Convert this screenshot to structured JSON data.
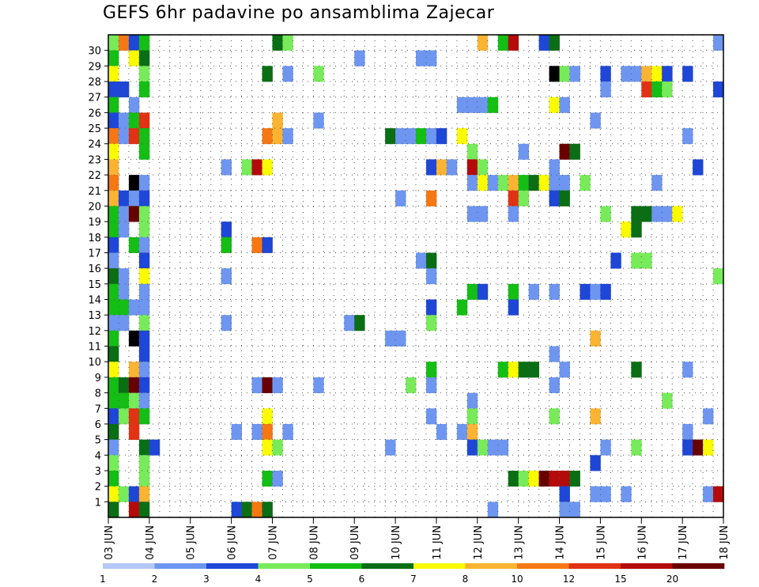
{
  "chart_data": {
    "type": "heatmap",
    "title": "GEFS 6hr padavine po ansamblima Zajecar",
    "x_ticks": [
      "03 JUN",
      "04 JUN",
      "05 JUN",
      "06 JUN",
      "07 JUN",
      "08 JUN",
      "09 JUN",
      "10 JUN",
      "11 JUN",
      "12 JUN",
      "13 JUN",
      "14 JUN",
      "15 JUN",
      "16 JUN",
      "17 JUN",
      "18 JUN"
    ],
    "y_ticks": [
      1,
      2,
      3,
      4,
      5,
      6,
      7,
      8,
      9,
      10,
      11,
      12,
      13,
      14,
      15,
      16,
      17,
      18,
      19,
      20,
      21,
      22,
      23,
      24,
      25,
      26,
      27,
      28,
      29,
      30
    ],
    "grid": "dotted",
    "legend_placement": "bottom",
    "colorbar": {
      "colors": [
        "#b4c8f5",
        "#6e96f0",
        "#1e46d7",
        "#78eb5a",
        "#14be14",
        "#0a6e14",
        "#fafa00",
        "#fab432",
        "#f57814",
        "#e13214",
        "#b40a0a",
        "#690000"
      ],
      "labels": [
        "1",
        "2",
        "3",
        "4",
        "5",
        "6",
        "7",
        "8",
        "10",
        "12",
        "15",
        "20"
      ]
    },
    "cells": [
      [
        30,
        0,
        3
      ],
      [
        30,
        1,
        8
      ],
      [
        30,
        2,
        2
      ],
      [
        30,
        3,
        4
      ],
      [
        30,
        16,
        5
      ],
      [
        30,
        17,
        3
      ],
      [
        30,
        36,
        7
      ],
      [
        30,
        38,
        4
      ],
      [
        30,
        39,
        10
      ],
      [
        30,
        42,
        2
      ],
      [
        30,
        43,
        5
      ],
      [
        30,
        59,
        1
      ],
      [
        29,
        0,
        4
      ],
      [
        29,
        2,
        6
      ],
      [
        29,
        3,
        5
      ],
      [
        29,
        24,
        1
      ],
      [
        29,
        30,
        1
      ],
      [
        29,
        31,
        1
      ],
      [
        28,
        0,
        6
      ],
      [
        28,
        3,
        3
      ],
      [
        28,
        15,
        5
      ],
      [
        28,
        17,
        1
      ],
      [
        28,
        20,
        3
      ],
      [
        28,
        43,
        12
      ],
      [
        28,
        44,
        3
      ],
      [
        28,
        45,
        1
      ],
      [
        28,
        48,
        2
      ],
      [
        28,
        50,
        1
      ],
      [
        28,
        51,
        1
      ],
      [
        28,
        52,
        7
      ],
      [
        28,
        53,
        6
      ],
      [
        28,
        54,
        2
      ],
      [
        28,
        56,
        2
      ],
      [
        27,
        0,
        2
      ],
      [
        27,
        1,
        2
      ],
      [
        27,
        3,
        4
      ],
      [
        27,
        48,
        1
      ],
      [
        27,
        52,
        9
      ],
      [
        27,
        53,
        4
      ],
      [
        27,
        54,
        3
      ],
      [
        27,
        59,
        2
      ],
      [
        26,
        0,
        4
      ],
      [
        26,
        2,
        1
      ],
      [
        26,
        34,
        1
      ],
      [
        26,
        35,
        1
      ],
      [
        26,
        36,
        1
      ],
      [
        26,
        37,
        4
      ],
      [
        26,
        43,
        6
      ],
      [
        26,
        44,
        1
      ],
      [
        25,
        0,
        2
      ],
      [
        25,
        1,
        1
      ],
      [
        25,
        2,
        4
      ],
      [
        25,
        3,
        9
      ],
      [
        25,
        16,
        7
      ],
      [
        25,
        20,
        1
      ],
      [
        25,
        47,
        1
      ],
      [
        24,
        0,
        8
      ],
      [
        24,
        1,
        1
      ],
      [
        24,
        2,
        9
      ],
      [
        24,
        3,
        4
      ],
      [
        24,
        15,
        8
      ],
      [
        24,
        16,
        7
      ],
      [
        24,
        17,
        1
      ],
      [
        24,
        27,
        5
      ],
      [
        24,
        28,
        1
      ],
      [
        24,
        29,
        1
      ],
      [
        24,
        30,
        4
      ],
      [
        24,
        31,
        1
      ],
      [
        24,
        32,
        2
      ],
      [
        24,
        34,
        6
      ],
      [
        24,
        56,
        1
      ],
      [
        23,
        0,
        6
      ],
      [
        23,
        3,
        4
      ],
      [
        23,
        35,
        3
      ],
      [
        23,
        40,
        1
      ],
      [
        23,
        44,
        11
      ],
      [
        23,
        45,
        5
      ],
      [
        22,
        0,
        7
      ],
      [
        22,
        11,
        1
      ],
      [
        22,
        13,
        3
      ],
      [
        22,
        14,
        10
      ],
      [
        22,
        15,
        6
      ],
      [
        22,
        31,
        2
      ],
      [
        22,
        32,
        7
      ],
      [
        22,
        33,
        1
      ],
      [
        22,
        35,
        10
      ],
      [
        22,
        36,
        3
      ],
      [
        22,
        43,
        1
      ],
      [
        22,
        57,
        2
      ],
      [
        21,
        0,
        8
      ],
      [
        21,
        2,
        12
      ],
      [
        21,
        3,
        1
      ],
      [
        21,
        35,
        1
      ],
      [
        21,
        36,
        6
      ],
      [
        21,
        37,
        1
      ],
      [
        21,
        38,
        3
      ],
      [
        21,
        39,
        7
      ],
      [
        21,
        40,
        4
      ],
      [
        21,
        41,
        5
      ],
      [
        21,
        42,
        6
      ],
      [
        21,
        43,
        1
      ],
      [
        21,
        44,
        1
      ],
      [
        21,
        46,
        3
      ],
      [
        21,
        53,
        1
      ],
      [
        20,
        0,
        7
      ],
      [
        20,
        1,
        2
      ],
      [
        20,
        2,
        1
      ],
      [
        20,
        3,
        2
      ],
      [
        20,
        28,
        1
      ],
      [
        20,
        31,
        8
      ],
      [
        20,
        39,
        9
      ],
      [
        20,
        40,
        3
      ],
      [
        20,
        43,
        2
      ],
      [
        20,
        44,
        5
      ],
      [
        19,
        0,
        4
      ],
      [
        19,
        1,
        1
      ],
      [
        19,
        2,
        11
      ],
      [
        19,
        3,
        3
      ],
      [
        19,
        35,
        1
      ],
      [
        19,
        36,
        1
      ],
      [
        19,
        39,
        1
      ],
      [
        19,
        48,
        3
      ],
      [
        19,
        51,
        5
      ],
      [
        19,
        52,
        5
      ],
      [
        19,
        53,
        1
      ],
      [
        19,
        54,
        1
      ],
      [
        19,
        55,
        6
      ],
      [
        18,
        0,
        4
      ],
      [
        18,
        1,
        1
      ],
      [
        18,
        3,
        3
      ],
      [
        18,
        11,
        2
      ],
      [
        18,
        50,
        6
      ],
      [
        18,
        51,
        5
      ],
      [
        17,
        0,
        2
      ],
      [
        17,
        2,
        4
      ],
      [
        17,
        3,
        1
      ],
      [
        17,
        11,
        4
      ],
      [
        17,
        14,
        8
      ],
      [
        17,
        15,
        2
      ],
      [
        16,
        0,
        1
      ],
      [
        16,
        3,
        2
      ],
      [
        16,
        30,
        1
      ],
      [
        16,
        31,
        5
      ],
      [
        16,
        49,
        2
      ],
      [
        16,
        51,
        3
      ],
      [
        16,
        52,
        3
      ],
      [
        15,
        0,
        5
      ],
      [
        15,
        1,
        1
      ],
      [
        15,
        3,
        6
      ],
      [
        15,
        11,
        1
      ],
      [
        15,
        31,
        1
      ],
      [
        15,
        59,
        3
      ],
      [
        14,
        0,
        4
      ],
      [
        14,
        1,
        1
      ],
      [
        14,
        3,
        1
      ],
      [
        14,
        35,
        4
      ],
      [
        14,
        36,
        2
      ],
      [
        14,
        39,
        4
      ],
      [
        14,
        41,
        1
      ],
      [
        14,
        43,
        1
      ],
      [
        14,
        46,
        2
      ],
      [
        14,
        47,
        1
      ],
      [
        14,
        48,
        2
      ],
      [
        13,
        0,
        4
      ],
      [
        13,
        1,
        4
      ],
      [
        13,
        2,
        1
      ],
      [
        13,
        3,
        1
      ],
      [
        13,
        31,
        2
      ],
      [
        13,
        34,
        4
      ],
      [
        13,
        39,
        2
      ],
      [
        12,
        0,
        1
      ],
      [
        12,
        1,
        1
      ],
      [
        12,
        3,
        3
      ],
      [
        12,
        11,
        1
      ],
      [
        12,
        23,
        1
      ],
      [
        12,
        24,
        5
      ],
      [
        12,
        31,
        3
      ],
      [
        11,
        0,
        4
      ],
      [
        11,
        2,
        12
      ],
      [
        11,
        3,
        2
      ],
      [
        11,
        27,
        1
      ],
      [
        11,
        28,
        1
      ],
      [
        11,
        47,
        7
      ],
      [
        10,
        0,
        5
      ],
      [
        10,
        3,
        2
      ],
      [
        10,
        43,
        1
      ],
      [
        9,
        0,
        6
      ],
      [
        9,
        2,
        7
      ],
      [
        9,
        3,
        1
      ],
      [
        9,
        31,
        4
      ],
      [
        9,
        38,
        4
      ],
      [
        9,
        39,
        6
      ],
      [
        9,
        40,
        5
      ],
      [
        9,
        41,
        5
      ],
      [
        9,
        44,
        1
      ],
      [
        9,
        51,
        5
      ],
      [
        9,
        56,
        1
      ],
      [
        8,
        0,
        4
      ],
      [
        8,
        1,
        5
      ],
      [
        8,
        2,
        11
      ],
      [
        8,
        3,
        2
      ],
      [
        8,
        14,
        1
      ],
      [
        8,
        15,
        11
      ],
      [
        8,
        16,
        1
      ],
      [
        8,
        20,
        1
      ],
      [
        8,
        29,
        3
      ],
      [
        8,
        31,
        1
      ],
      [
        8,
        43,
        1
      ],
      [
        7,
        0,
        4
      ],
      [
        7,
        1,
        4
      ],
      [
        7,
        2,
        3
      ],
      [
        7,
        3,
        1
      ],
      [
        7,
        35,
        1
      ],
      [
        7,
        54,
        3
      ],
      [
        6,
        0,
        2
      ],
      [
        6,
        1,
        3
      ],
      [
        6,
        2,
        9
      ],
      [
        6,
        3,
        4
      ],
      [
        6,
        15,
        6
      ],
      [
        6,
        31,
        1
      ],
      [
        6,
        35,
        3
      ],
      [
        6,
        43,
        3
      ],
      [
        6,
        47,
        7
      ],
      [
        6,
        58,
        1
      ],
      [
        5,
        0,
        5
      ],
      [
        5,
        2,
        9
      ],
      [
        5,
        12,
        1
      ],
      [
        5,
        14,
        1
      ],
      [
        5,
        15,
        8
      ],
      [
        5,
        17,
        1
      ],
      [
        5,
        32,
        1
      ],
      [
        5,
        34,
        1
      ],
      [
        5,
        35,
        7
      ],
      [
        5,
        56,
        1
      ],
      [
        4,
        0,
        1
      ],
      [
        4,
        3,
        5
      ],
      [
        4,
        4,
        2
      ],
      [
        4,
        15,
        6
      ],
      [
        4,
        16,
        3
      ],
      [
        4,
        27,
        1
      ],
      [
        4,
        35,
        2
      ],
      [
        4,
        36,
        3
      ],
      [
        4,
        37,
        1
      ],
      [
        4,
        38,
        1
      ],
      [
        4,
        48,
        1
      ],
      [
        4,
        51,
        3
      ],
      [
        4,
        56,
        2
      ],
      [
        4,
        57,
        11
      ],
      [
        4,
        58,
        6
      ],
      [
        3,
        0,
        3
      ],
      [
        3,
        3,
        3
      ],
      [
        3,
        47,
        2
      ],
      [
        2,
        0,
        4
      ],
      [
        2,
        3,
        3
      ],
      [
        2,
        15,
        4
      ],
      [
        2,
        16,
        1
      ],
      [
        2,
        39,
        5
      ],
      [
        2,
        40,
        3
      ],
      [
        2,
        41,
        6
      ],
      [
        2,
        42,
        11
      ],
      [
        2,
        43,
        10
      ],
      [
        2,
        44,
        10
      ],
      [
        2,
        45,
        5
      ],
      [
        1,
        0,
        6
      ],
      [
        1,
        1,
        3
      ],
      [
        1,
        2,
        2
      ],
      [
        1,
        3,
        7
      ],
      [
        1,
        44,
        2
      ],
      [
        1,
        47,
        1
      ],
      [
        1,
        48,
        1
      ],
      [
        1,
        50,
        1
      ],
      [
        1,
        58,
        1
      ],
      [
        1,
        59,
        10
      ],
      [
        0,
        0,
        5
      ],
      [
        0,
        2,
        10
      ],
      [
        0,
        3,
        5
      ],
      [
        0,
        12,
        2
      ],
      [
        0,
        13,
        5
      ],
      [
        0,
        14,
        8
      ],
      [
        0,
        15,
        5
      ],
      [
        0,
        37,
        1
      ],
      [
        0,
        44,
        1
      ],
      [
        0,
        45,
        1
      ]
    ]
  }
}
